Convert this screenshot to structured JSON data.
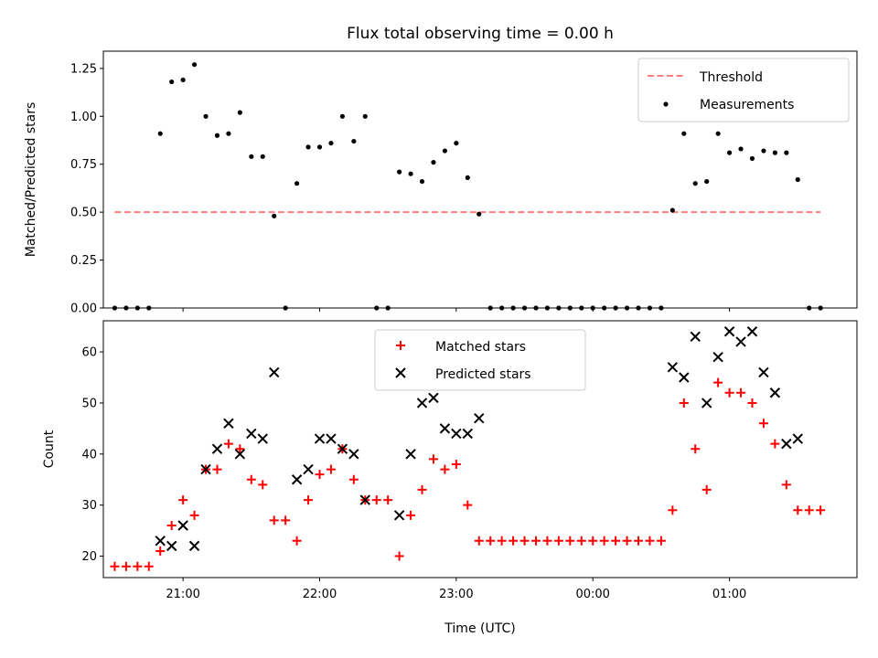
{
  "title": "Flux total observing time = 0.00 h",
  "xlabel": "Time (UTC)",
  "colors": {
    "threshold": "#ff7f7f",
    "measurements": "#000000",
    "matched": "#ff0000",
    "predicted": "#000000"
  },
  "chart_data": [
    {
      "type": "scatter",
      "title": "Flux total observing time = 0.00 h",
      "ylabel": "Matched/Predicted stars",
      "xlim": [
        "20:25",
        "01:56"
      ],
      "ylim": [
        0,
        1.34
      ],
      "y_ticks": [
        "0.00",
        "0.25",
        "0.50",
        "0.75",
        "1.00",
        "1.25"
      ],
      "legend_placement": "upper right",
      "threshold": {
        "name": "Threshold",
        "value": 0.5,
        "x_start": "20:30",
        "x_end": "01:40"
      },
      "series": [
        {
          "name": "Measurements",
          "points": [
            [
              "20:30",
              0
            ],
            [
              "20:35",
              0
            ],
            [
              "20:40",
              0
            ],
            [
              "20:45",
              0
            ],
            [
              "20:50",
              0.91
            ],
            [
              "20:55",
              1.18
            ],
            [
              "21:00",
              1.19
            ],
            [
              "21:05",
              1.27
            ],
            [
              "21:10",
              1.0
            ],
            [
              "21:15",
              0.9
            ],
            [
              "21:20",
              0.91
            ],
            [
              "21:25",
              1.02
            ],
            [
              "21:30",
              0.79
            ],
            [
              "21:35",
              0.79
            ],
            [
              "21:40",
              0.48
            ],
            [
              "21:45",
              0
            ],
            [
              "21:50",
              0.65
            ],
            [
              "21:55",
              0.84
            ],
            [
              "22:00",
              0.84
            ],
            [
              "22:05",
              0.86
            ],
            [
              "22:10",
              1.0
            ],
            [
              "22:15",
              0.87
            ],
            [
              "22:20",
              1.0
            ],
            [
              "22:25",
              0
            ],
            [
              "22:30",
              0
            ],
            [
              "22:35",
              0.71
            ],
            [
              "22:40",
              0.7
            ],
            [
              "22:45",
              0.66
            ],
            [
              "22:50",
              0.76
            ],
            [
              "22:55",
              0.82
            ],
            [
              "23:00",
              0.86
            ],
            [
              "23:05",
              0.68
            ],
            [
              "23:10",
              0.49
            ],
            [
              "23:15",
              0
            ],
            [
              "23:20",
              0
            ],
            [
              "23:25",
              0
            ],
            [
              "23:30",
              0
            ],
            [
              "23:35",
              0
            ],
            [
              "23:40",
              0
            ],
            [
              "23:45",
              0
            ],
            [
              "23:50",
              0
            ],
            [
              "23:55",
              0
            ],
            [
              "00:00",
              0
            ],
            [
              "00:05",
              0
            ],
            [
              "00:10",
              0
            ],
            [
              "00:15",
              0
            ],
            [
              "00:20",
              0
            ],
            [
              "00:25",
              0
            ],
            [
              "00:30",
              0
            ],
            [
              "00:35",
              0.51
            ],
            [
              "00:40",
              0.91
            ],
            [
              "00:45",
              0.65
            ],
            [
              "00:50",
              0.66
            ],
            [
              "00:55",
              0.91
            ],
            [
              "01:00",
              0.81
            ],
            [
              "01:05",
              0.83
            ],
            [
              "01:10",
              0.78
            ],
            [
              "01:15",
              0.82
            ],
            [
              "01:20",
              0.81
            ],
            [
              "01:25",
              0.81
            ],
            [
              "01:30",
              0.67
            ],
            [
              "01:35",
              0
            ],
            [
              "01:40",
              0
            ]
          ]
        }
      ]
    },
    {
      "type": "scatter",
      "ylabel": "Count",
      "xlabel": "Time (UTC)",
      "xlim": [
        "20:25",
        "01:56"
      ],
      "ylim": [
        15.8,
        66.1
      ],
      "y_ticks": [
        "20",
        "30",
        "40",
        "50",
        "60"
      ],
      "x_ticks": [
        "21:00",
        "22:00",
        "23:00",
        "00:00",
        "01:00"
      ],
      "legend_placement": "upper center",
      "series": [
        {
          "name": "Matched stars",
          "points": [
            [
              "20:30",
              18
            ],
            [
              "20:35",
              18
            ],
            [
              "20:40",
              18
            ],
            [
              "20:45",
              18
            ],
            [
              "20:50",
              21
            ],
            [
              "20:55",
              26
            ],
            [
              "21:00",
              31
            ],
            [
              "21:05",
              28
            ],
            [
              "21:10",
              37
            ],
            [
              "21:15",
              37
            ],
            [
              "21:20",
              42
            ],
            [
              "21:25",
              41
            ],
            [
              "21:30",
              35
            ],
            [
              "21:35",
              34
            ],
            [
              "21:40",
              27
            ],
            [
              "21:45",
              27
            ],
            [
              "21:50",
              23
            ],
            [
              "21:55",
              31
            ],
            [
              "22:00",
              36
            ],
            [
              "22:05",
              37
            ],
            [
              "22:10",
              41
            ],
            [
              "22:15",
              35
            ],
            [
              "22:20",
              31
            ],
            [
              "22:25",
              31
            ],
            [
              "22:30",
              31
            ],
            [
              "22:35",
              20
            ],
            [
              "22:40",
              28
            ],
            [
              "22:45",
              33
            ],
            [
              "22:50",
              39
            ],
            [
              "22:55",
              37
            ],
            [
              "23:00",
              38
            ],
            [
              "23:05",
              30
            ],
            [
              "23:10",
              23
            ],
            [
              "23:15",
              23
            ],
            [
              "23:20",
              23
            ],
            [
              "23:25",
              23
            ],
            [
              "23:30",
              23
            ],
            [
              "23:35",
              23
            ],
            [
              "23:40",
              23
            ],
            [
              "23:45",
              23
            ],
            [
              "23:50",
              23
            ],
            [
              "23:55",
              23
            ],
            [
              "00:00",
              23
            ],
            [
              "00:05",
              23
            ],
            [
              "00:10",
              23
            ],
            [
              "00:15",
              23
            ],
            [
              "00:20",
              23
            ],
            [
              "00:25",
              23
            ],
            [
              "00:30",
              23
            ],
            [
              "00:35",
              29
            ],
            [
              "00:40",
              50
            ],
            [
              "00:45",
              41
            ],
            [
              "00:50",
              33
            ],
            [
              "00:55",
              54
            ],
            [
              "01:00",
              52
            ],
            [
              "01:05",
              52
            ],
            [
              "01:10",
              50
            ],
            [
              "01:15",
              46
            ],
            [
              "01:20",
              42
            ],
            [
              "01:25",
              34
            ],
            [
              "01:30",
              29
            ],
            [
              "01:35",
              29
            ],
            [
              "01:40",
              29
            ]
          ]
        },
        {
          "name": "Predicted stars",
          "points": [
            [
              "20:50",
              23
            ],
            [
              "20:55",
              22
            ],
            [
              "21:00",
              26
            ],
            [
              "21:05",
              22
            ],
            [
              "21:10",
              37
            ],
            [
              "21:15",
              41
            ],
            [
              "21:20",
              46
            ],
            [
              "21:25",
              40
            ],
            [
              "21:30",
              44
            ],
            [
              "21:35",
              43
            ],
            [
              "21:40",
              56
            ],
            [
              "21:50",
              35
            ],
            [
              "21:55",
              37
            ],
            [
              "22:00",
              43
            ],
            [
              "22:05",
              43
            ],
            [
              "22:10",
              41
            ],
            [
              "22:15",
              40
            ],
            [
              "22:20",
              31
            ],
            [
              "22:35",
              28
            ],
            [
              "22:40",
              40
            ],
            [
              "22:45",
              50
            ],
            [
              "22:50",
              51
            ],
            [
              "22:55",
              45
            ],
            [
              "23:00",
              44
            ],
            [
              "23:05",
              44
            ],
            [
              "23:10",
              47
            ],
            [
              "00:35",
              57
            ],
            [
              "00:40",
              55
            ],
            [
              "00:45",
              63
            ],
            [
              "00:50",
              50
            ],
            [
              "00:55",
              59
            ],
            [
              "01:00",
              64
            ],
            [
              "01:05",
              62
            ],
            [
              "01:10",
              64
            ],
            [
              "01:15",
              56
            ],
            [
              "01:20",
              52
            ],
            [
              "01:25",
              42
            ],
            [
              "01:30",
              43
            ]
          ]
        }
      ]
    }
  ]
}
